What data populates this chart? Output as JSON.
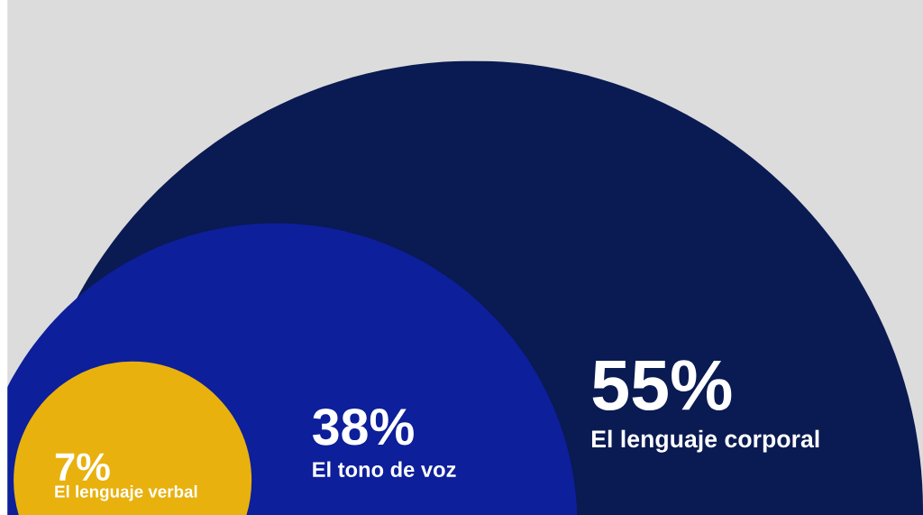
{
  "chart_data": {
    "type": "other",
    "categories": [
      "El lenguaje verbal",
      "El tono de voz",
      "El lenguaje corporal"
    ],
    "values": [
      7,
      38,
      55
    ],
    "value_labels": [
      "7%",
      "38%",
      "55%"
    ],
    "colors": [
      "#e8b10e",
      "#0d1f9a",
      "#0a1a52"
    ]
  }
}
